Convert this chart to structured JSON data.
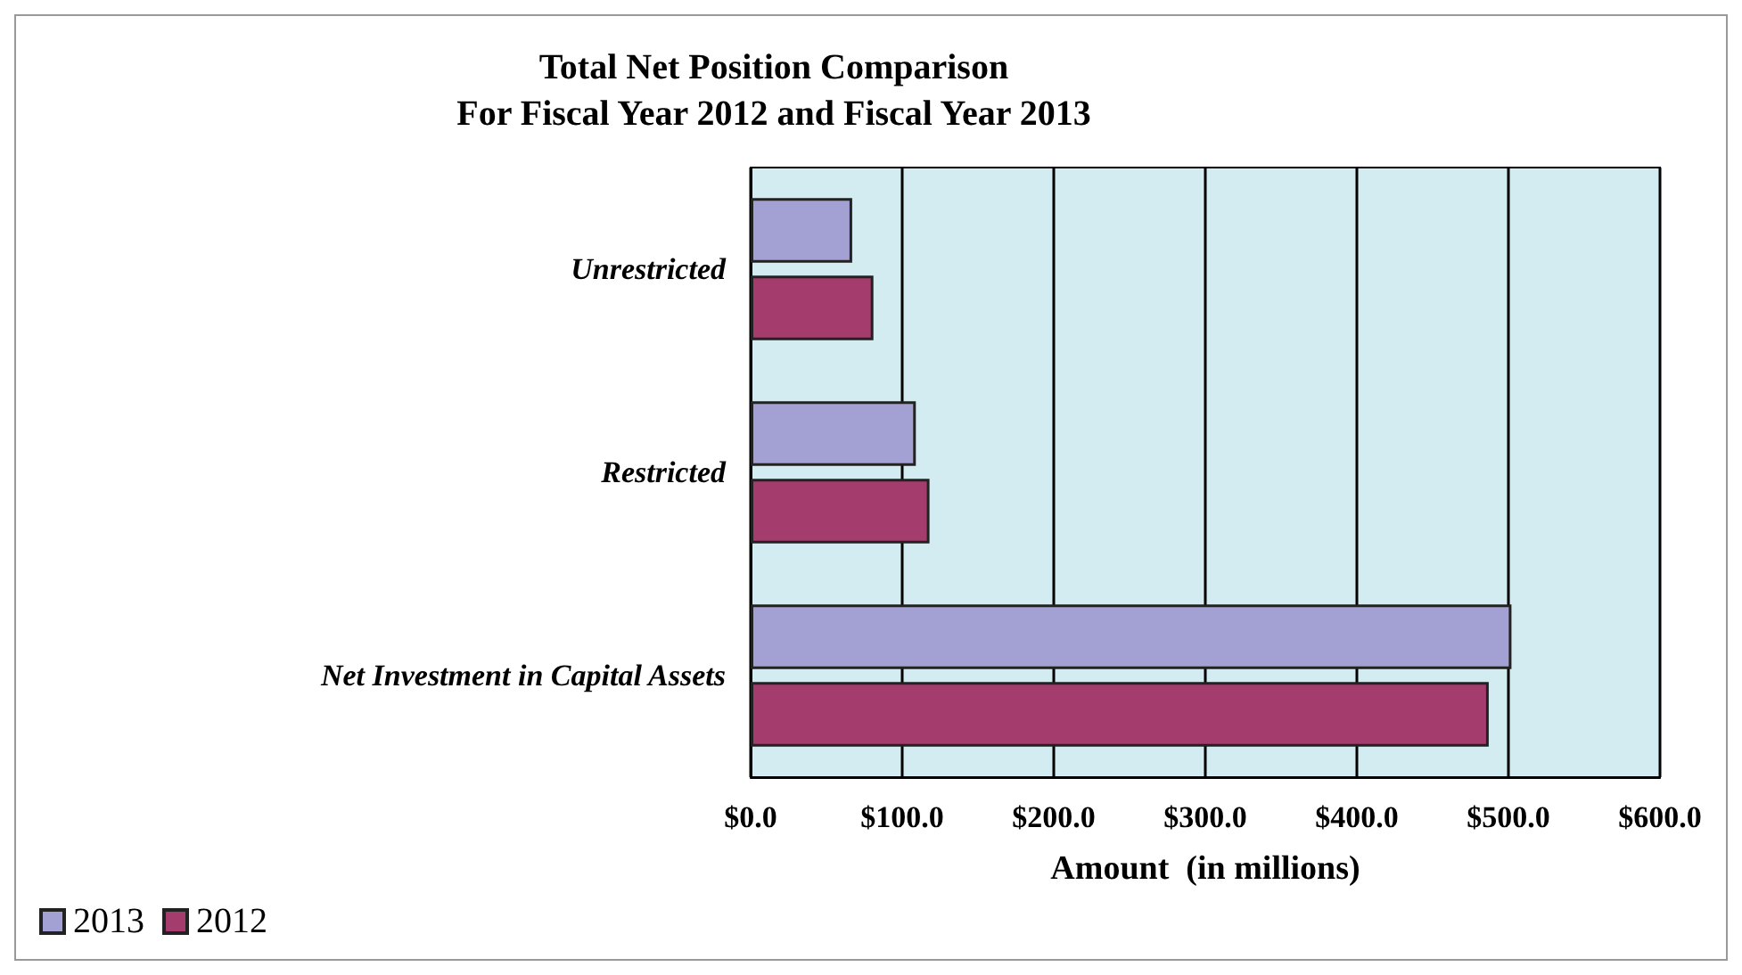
{
  "chart_data": {
    "type": "bar",
    "orientation": "horizontal",
    "title": "Total Net Position Comparison",
    "subtitle": "For Fiscal Year 2012 and Fiscal Year 2013",
    "xlabel": "Amount  (in millions)",
    "categories": [
      "Unrestricted",
      "Restricted",
      "Net Investment in Capital Assets"
    ],
    "series": [
      {
        "name": "2013",
        "color": "#a3a0d4",
        "values": [
          67,
          109,
          502
        ]
      },
      {
        "name": "2012",
        "color": "#a43c6e",
        "values": [
          81,
          118,
          487
        ]
      }
    ],
    "xlim": [
      0,
      600
    ],
    "xticks": [
      {
        "value": 0,
        "label": "$0.0"
      },
      {
        "value": 100,
        "label": "$100.0"
      },
      {
        "value": 200,
        "label": "$200.0"
      },
      {
        "value": 300,
        "label": "$300.0"
      },
      {
        "value": 400,
        "label": "$400.0"
      },
      {
        "value": 500,
        "label": "$500.0"
      },
      {
        "value": 600,
        "label": "$600.0"
      }
    ],
    "grid": "x",
    "legend": "bottom left"
  }
}
